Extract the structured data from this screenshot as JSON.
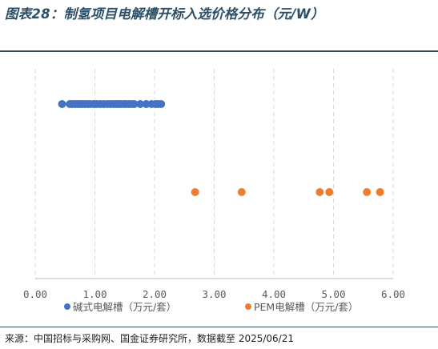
{
  "title": "图表28：制氢项目电解槽开标入选价格分布（元/W）",
  "source": "来源：中国招标与采购网、国金证券研究所，数据截至 2025/06/21",
  "colors": {
    "accent": "#2a4f66",
    "series_alkaline": "#4472c4",
    "series_pem": "#ed7d31",
    "gridline": "#d9d9d9",
    "axis": "#bfbfbf"
  },
  "chart_data": {
    "type": "scatter",
    "xlim": [
      0,
      6
    ],
    "x_ticks": [
      "0.00",
      "1.00",
      "2.00",
      "3.00",
      "4.00",
      "5.00",
      "6.00"
    ],
    "grid": "vertical dashed",
    "legend_position": "bottom",
    "series": [
      {
        "name": "碱式电解槽（万元/套）",
        "color": "#4472c4",
        "y": 2,
        "x": [
          0.45,
          0.58,
          0.62,
          0.67,
          0.71,
          0.75,
          0.79,
          0.83,
          0.88,
          0.92,
          0.98,
          1.03,
          1.09,
          1.15,
          1.21,
          1.26,
          1.31,
          1.35,
          1.39,
          1.43,
          1.48,
          1.52,
          1.57,
          1.62,
          1.66,
          1.76,
          1.86,
          1.95,
          2.02,
          2.06,
          2.11
        ]
      },
      {
        "name": "PEM电解槽（万元/套）",
        "color": "#ed7d31",
        "y": 1,
        "x": [
          2.68,
          3.46,
          4.77,
          4.93,
          5.56,
          5.78
        ]
      }
    ]
  }
}
